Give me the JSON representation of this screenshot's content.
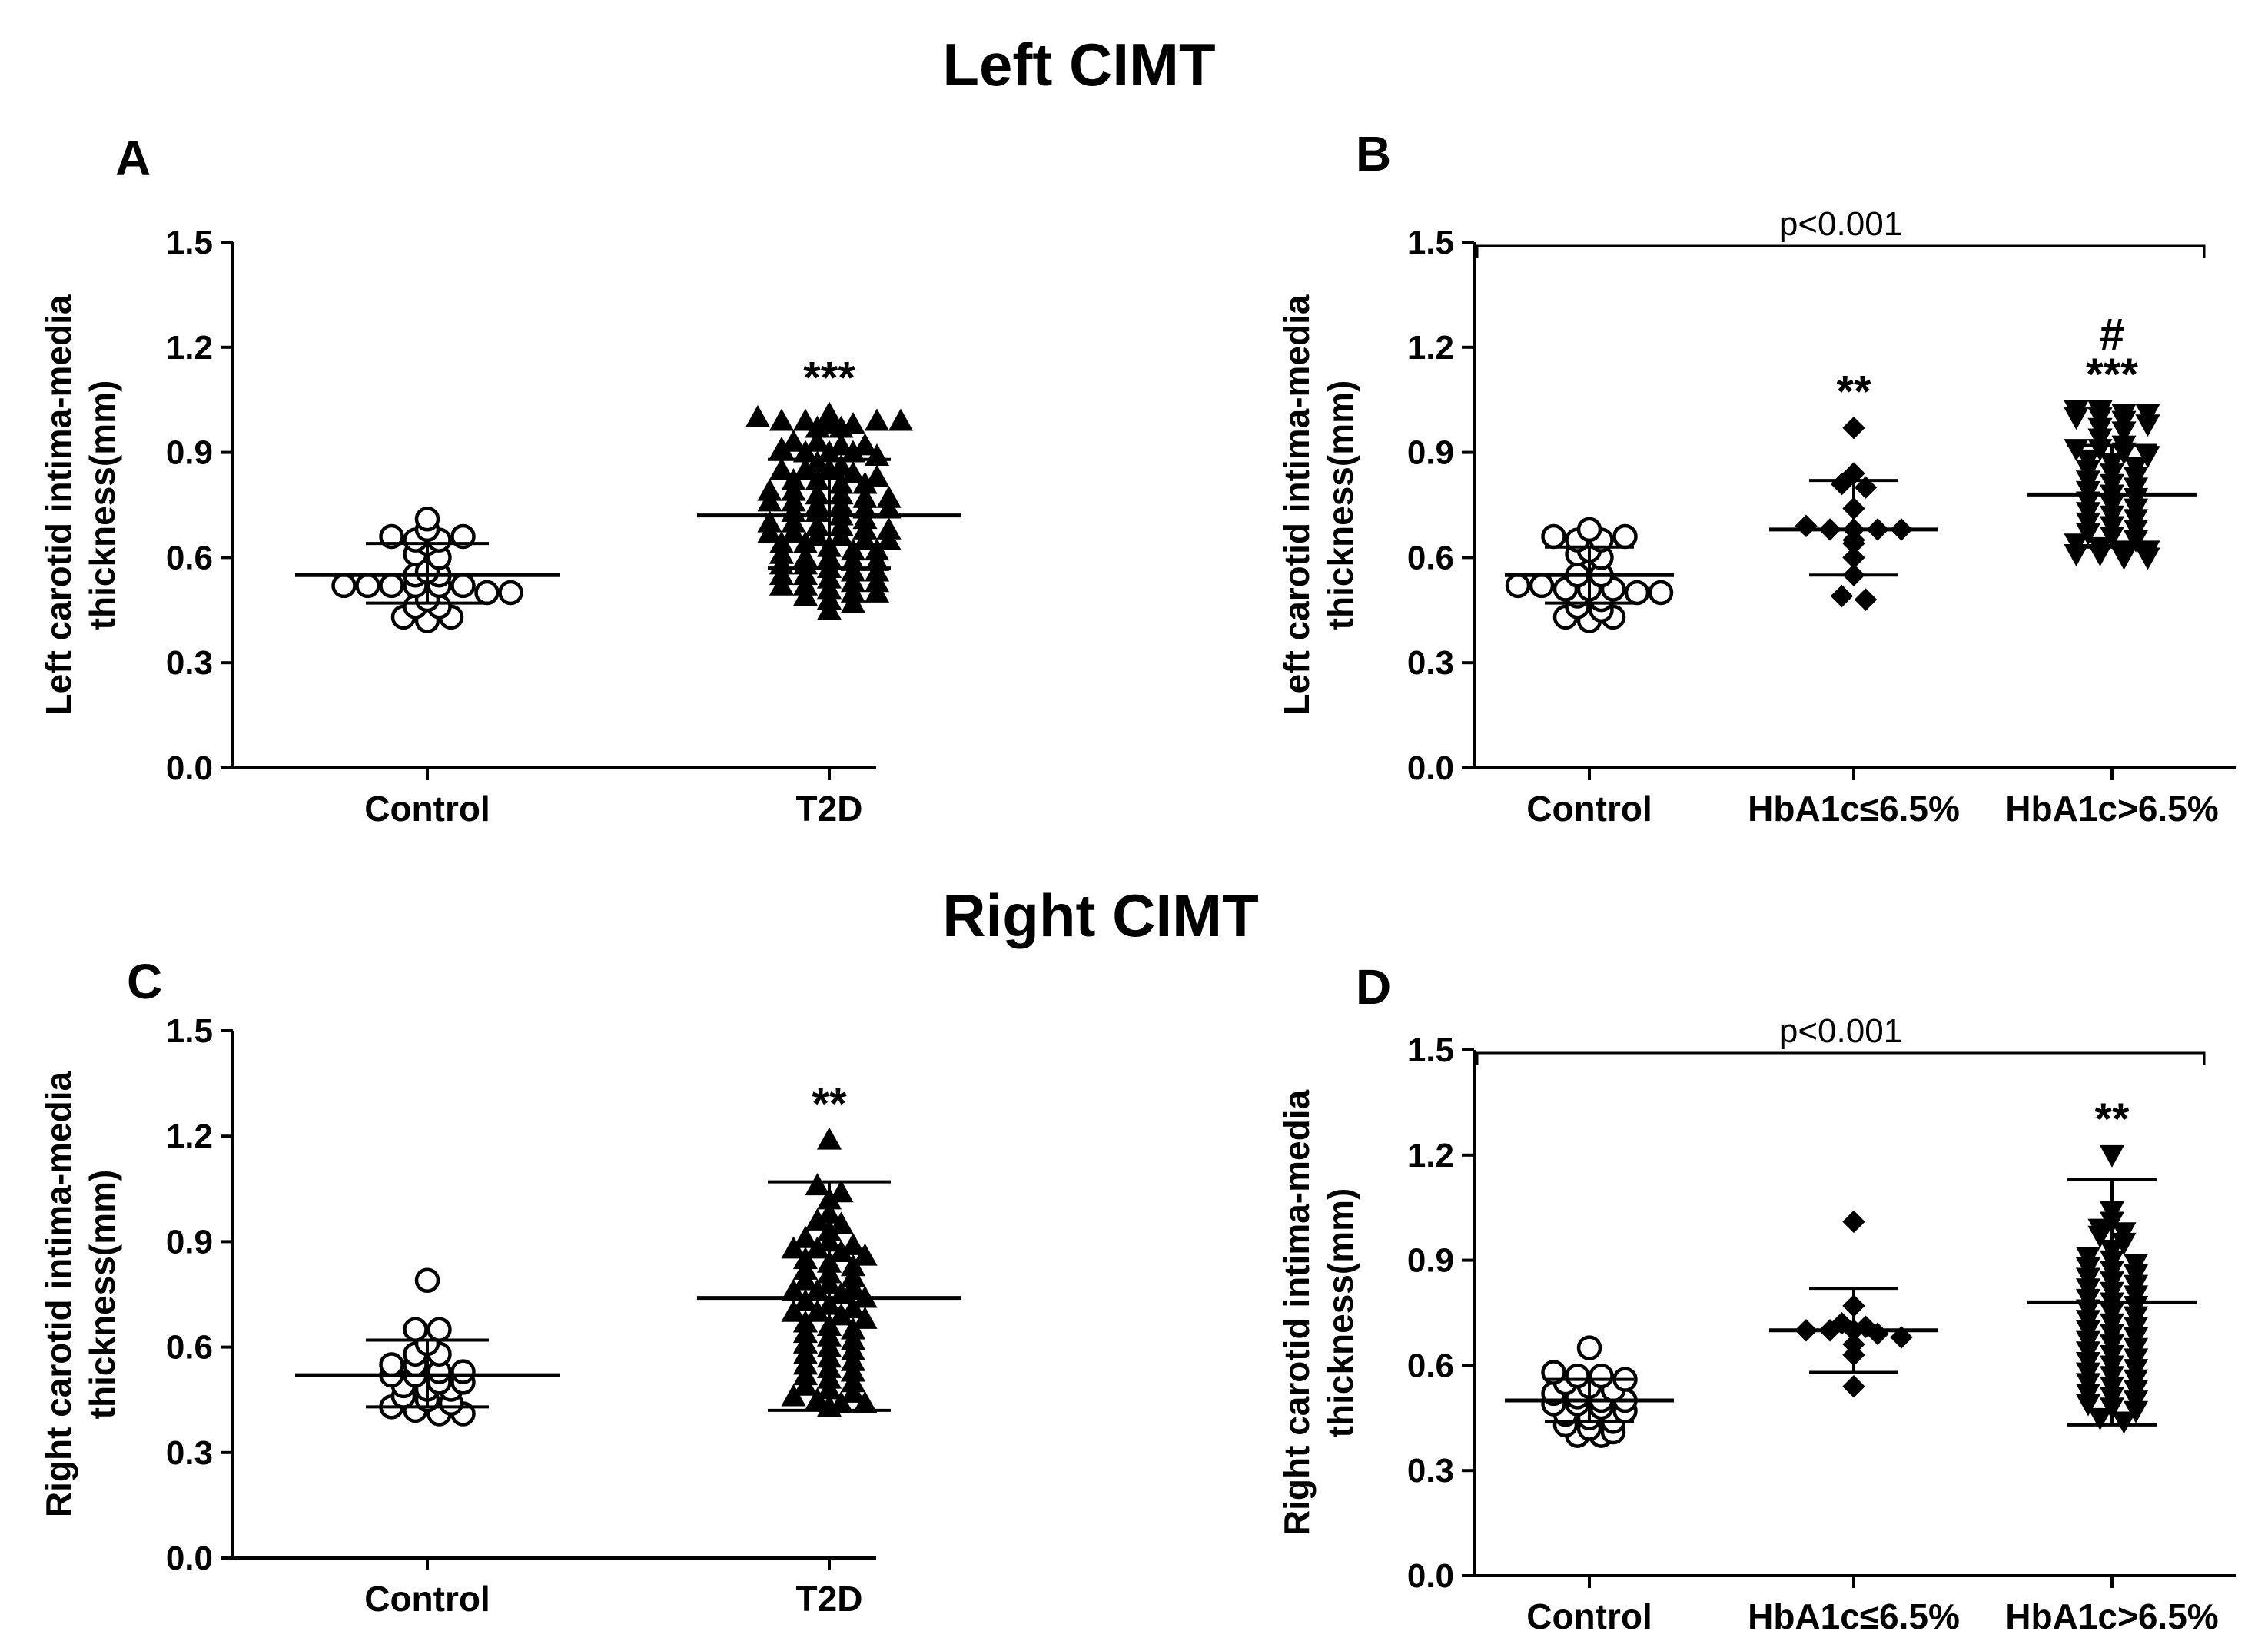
{
  "sections": {
    "top_title": "Left CIMT",
    "bottom_title": "Right CIMT"
  },
  "chart_data": [
    {
      "panel": "A",
      "type": "scatter",
      "section": "Left CIMT",
      "ylabel_line1": "Left carotid intima-media",
      "ylabel_line2": "thickness(mm)",
      "ylim": [
        0,
        1.5
      ],
      "yticks": [
        "0.0",
        "0.3",
        "0.6",
        "0.9",
        "1.2",
        "1.5"
      ],
      "categories": [
        "Control",
        "T2D"
      ],
      "groups": [
        {
          "name": "Control",
          "marker": "circle-open",
          "mean": 0.55,
          "sd_low": 0.47,
          "sd_high": 0.64,
          "values": [
            0.68,
            0.66,
            0.64,
            0.65,
            0.65,
            0.66,
            0.71,
            0.61,
            0.6,
            0.56,
            0.55,
            0.55,
            0.52,
            0.52,
            0.52,
            0.52,
            0.52,
            0.52,
            0.5,
            0.5,
            0.48,
            0.46,
            0.46,
            0.43,
            0.42,
            0.43
          ]
        },
        {
          "name": "T2D",
          "marker": "triangle-up",
          "mean": 0.72,
          "sd_low": 0.57,
          "sd_high": 0.88,
          "values": [
            1.01,
            1.0,
            0.99,
            0.99,
            0.98,
            0.98,
            0.97,
            0.99,
            0.99,
            0.97,
            0.93,
            0.93,
            0.92,
            0.92,
            0.91,
            0.9,
            0.9,
            0.9,
            0.89,
            0.87,
            0.86,
            0.85,
            0.85,
            0.85,
            0.84,
            0.83,
            0.82,
            0.82,
            0.81,
            0.81,
            0.79,
            0.79,
            0.78,
            0.78,
            0.77,
            0.77,
            0.76,
            0.76,
            0.75,
            0.75,
            0.74,
            0.74,
            0.73,
            0.73,
            0.72,
            0.71,
            0.7,
            0.7,
            0.69,
            0.69,
            0.68,
            0.68,
            0.67,
            0.67,
            0.66,
            0.66,
            0.65,
            0.65,
            0.64,
            0.64,
            0.63,
            0.62,
            0.62,
            0.61,
            0.6,
            0.6,
            0.59,
            0.59,
            0.58,
            0.58,
            0.57,
            0.56,
            0.56,
            0.55,
            0.55,
            0.54,
            0.53,
            0.53,
            0.52,
            0.52,
            0.51,
            0.5,
            0.5,
            0.49,
            0.48,
            0.47,
            0.45
          ]
        }
      ],
      "annotations": [
        {
          "group": "T2D",
          "text": "***"
        }
      ]
    },
    {
      "panel": "B",
      "type": "scatter",
      "section": "Left CIMT",
      "ylabel_line1": "Left carotid intima-media",
      "ylabel_line2": "thickness(mm)",
      "ylim": [
        0,
        1.5
      ],
      "yticks": [
        "0.0",
        "0.3",
        "0.6",
        "0.9",
        "1.2",
        "1.5"
      ],
      "categories": [
        "Control",
        "HbA1c≤6.5%",
        "HbA1c>6.5%"
      ],
      "p_bracket": "p<0.001",
      "groups": [
        {
          "name": "Control",
          "marker": "circle-open",
          "mean": 0.55,
          "sd_low": 0.47,
          "sd_high": 0.63,
          "values": [
            0.68,
            0.66,
            0.65,
            0.65,
            0.66,
            0.62,
            0.61,
            0.6,
            0.55,
            0.55,
            0.52,
            0.52,
            0.51,
            0.51,
            0.51,
            0.5,
            0.5,
            0.49,
            0.48,
            0.46,
            0.45,
            0.43,
            0.42,
            0.43
          ]
        },
        {
          "name": "HbA1c≤6.5%",
          "marker": "diamond",
          "mean": 0.68,
          "sd_low": 0.55,
          "sd_high": 0.82,
          "values": [
            0.97,
            0.84,
            0.81,
            0.8,
            0.74,
            0.69,
            0.68,
            0.68,
            0.68,
            0.68,
            0.65,
            0.64,
            0.6,
            0.55,
            0.49,
            0.48
          ]
        },
        {
          "name": "HbA1c>6.5%",
          "marker": "triangle-down",
          "mean": 0.78,
          "sd_low": 0.63,
          "sd_high": 0.92,
          "values": [
            1.02,
            1.02,
            1.01,
            1.01,
            1.0,
            1.0,
            0.99,
            0.98,
            0.97,
            0.96,
            0.94,
            0.92,
            0.91,
            0.91,
            0.9,
            0.89,
            0.88,
            0.87,
            0.86,
            0.85,
            0.84,
            0.83,
            0.82,
            0.81,
            0.8,
            0.79,
            0.78,
            0.77,
            0.76,
            0.75,
            0.74,
            0.73,
            0.72,
            0.71,
            0.7,
            0.69,
            0.68,
            0.67,
            0.66,
            0.65,
            0.64,
            0.63,
            0.62,
            0.62,
            0.61,
            0.61,
            0.6,
            0.6
          ]
        }
      ],
      "annotations": [
        {
          "group": "HbA1c≤6.5%",
          "text": "**"
        },
        {
          "group": "HbA1c>6.5%",
          "text": "***"
        },
        {
          "group": "HbA1c>6.5%",
          "text": "#"
        }
      ]
    },
    {
      "panel": "C",
      "type": "scatter",
      "section": "Right CIMT",
      "ylabel_line1": "Right carotid intima-media",
      "ylabel_line2": "thickness(mm)",
      "ylim": [
        0,
        1.5
      ],
      "yticks": [
        "0.0",
        "0.3",
        "0.6",
        "0.9",
        "1.2",
        "1.5"
      ],
      "categories": [
        "Control",
        "T2D"
      ],
      "groups": [
        {
          "name": "Control",
          "marker": "circle-open",
          "mean": 0.52,
          "sd_low": 0.43,
          "sd_high": 0.62,
          "values": [
            0.79,
            0.65,
            0.65,
            0.61,
            0.58,
            0.58,
            0.55,
            0.55,
            0.53,
            0.53,
            0.52,
            0.52,
            0.5,
            0.5,
            0.49,
            0.48,
            0.48,
            0.46,
            0.45,
            0.44,
            0.43,
            0.42,
            0.41,
            0.41
          ]
        },
        {
          "name": "T2D",
          "marker": "triangle-up",
          "mean": 0.74,
          "sd_low": 0.42,
          "sd_high": 1.07,
          "values": [
            1.19,
            1.06,
            1.04,
            1.02,
            0.98,
            0.96,
            0.95,
            0.93,
            0.91,
            0.9,
            0.89,
            0.88,
            0.88,
            0.87,
            0.86,
            0.85,
            0.84,
            0.83,
            0.82,
            0.81,
            0.8,
            0.79,
            0.78,
            0.77,
            0.76,
            0.76,
            0.75,
            0.74,
            0.73,
            0.72,
            0.71,
            0.7,
            0.7,
            0.69,
            0.68,
            0.67,
            0.66,
            0.65,
            0.64,
            0.63,
            0.62,
            0.61,
            0.6,
            0.59,
            0.58,
            0.57,
            0.56,
            0.55,
            0.54,
            0.53,
            0.52,
            0.51,
            0.5,
            0.49,
            0.48,
            0.47,
            0.46,
            0.45,
            0.44,
            0.44,
            0.43
          ]
        }
      ],
      "annotations": [
        {
          "group": "T2D",
          "text": "**"
        }
      ]
    },
    {
      "panel": "D",
      "type": "scatter",
      "section": "Right CIMT",
      "ylabel_line1": "Right carotid intima-media",
      "ylabel_line2": "thickness(mm)",
      "ylim": [
        0,
        1.5
      ],
      "yticks": [
        "0.0",
        "0.3",
        "0.6",
        "0.9",
        "1.2",
        "1.5"
      ],
      "categories": [
        "Control",
        "HbA1c≤6.5%",
        "HbA1c>6.5%"
      ],
      "p_bracket": "p<0.001",
      "groups": [
        {
          "name": "Control",
          "marker": "circle-open",
          "mean": 0.5,
          "sd_low": 0.44,
          "sd_high": 0.56,
          "values": [
            0.65,
            0.58,
            0.57,
            0.57,
            0.56,
            0.55,
            0.54,
            0.53,
            0.52,
            0.51,
            0.5,
            0.5,
            0.49,
            0.49,
            0.48,
            0.47,
            0.46,
            0.45,
            0.44,
            0.43,
            0.42,
            0.41,
            0.4,
            0.4
          ]
        },
        {
          "name": "HbA1c≤6.5%",
          "marker": "diamond",
          "mean": 0.7,
          "sd_low": 0.58,
          "sd_high": 0.82,
          "values": [
            1.01,
            0.77,
            0.72,
            0.71,
            0.7,
            0.7,
            0.7,
            0.69,
            0.68,
            0.66,
            0.63,
            0.54
          ]
        },
        {
          "name": "HbA1c>6.5%",
          "marker": "triangle-down",
          "mean": 0.78,
          "sd_low": 0.43,
          "sd_high": 1.13,
          "values": [
            1.2,
            1.04,
            1.01,
            0.99,
            0.98,
            0.97,
            0.95,
            0.93,
            0.91,
            0.9,
            0.89,
            0.88,
            0.87,
            0.86,
            0.85,
            0.84,
            0.83,
            0.82,
            0.81,
            0.8,
            0.79,
            0.78,
            0.77,
            0.76,
            0.75,
            0.74,
            0.73,
            0.72,
            0.71,
            0.7,
            0.69,
            0.68,
            0.67,
            0.66,
            0.65,
            0.64,
            0.63,
            0.62,
            0.61,
            0.6,
            0.59,
            0.58,
            0.57,
            0.56,
            0.55,
            0.54,
            0.53,
            0.52,
            0.51,
            0.5,
            0.49,
            0.48,
            0.47,
            0.45,
            0.44
          ]
        }
      ],
      "annotations": [
        {
          "group": "HbA1c>6.5%",
          "text": "**"
        }
      ]
    }
  ]
}
